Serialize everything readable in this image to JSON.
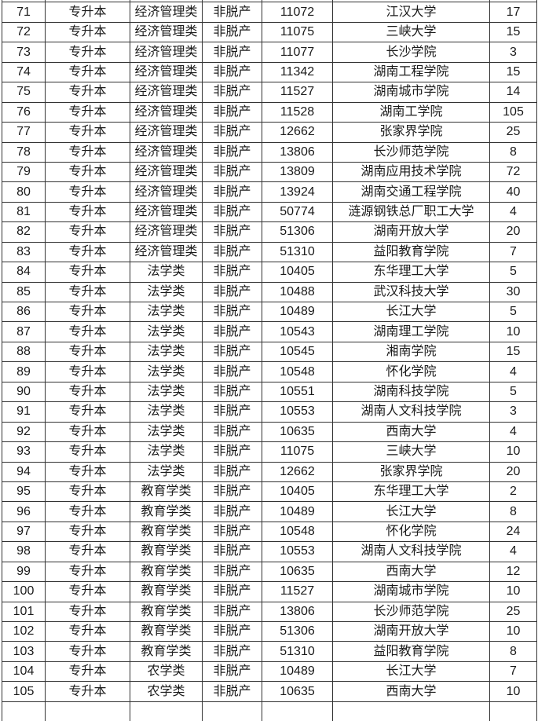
{
  "table": {
    "columns": [
      "no",
      "level",
      "category",
      "mode",
      "code",
      "school",
      "count"
    ],
    "rows": [
      {
        "no": "71",
        "level": "专升本",
        "category": "经济管理类",
        "mode": "非脱产",
        "code": "11072",
        "school": "江汉大学",
        "count": "17"
      },
      {
        "no": "72",
        "level": "专升本",
        "category": "经济管理类",
        "mode": "非脱产",
        "code": "11075",
        "school": "三峡大学",
        "count": "15"
      },
      {
        "no": "73",
        "level": "专升本",
        "category": "经济管理类",
        "mode": "非脱产",
        "code": "11077",
        "school": "长沙学院",
        "count": "3"
      },
      {
        "no": "74",
        "level": "专升本",
        "category": "经济管理类",
        "mode": "非脱产",
        "code": "11342",
        "school": "湖南工程学院",
        "count": "15"
      },
      {
        "no": "75",
        "level": "专升本",
        "category": "经济管理类",
        "mode": "非脱产",
        "code": "11527",
        "school": "湖南城市学院",
        "count": "14"
      },
      {
        "no": "76",
        "level": "专升本",
        "category": "经济管理类",
        "mode": "非脱产",
        "code": "11528",
        "school": "湖南工学院",
        "count": "105"
      },
      {
        "no": "77",
        "level": "专升本",
        "category": "经济管理类",
        "mode": "非脱产",
        "code": "12662",
        "school": "张家界学院",
        "count": "25"
      },
      {
        "no": "78",
        "level": "专升本",
        "category": "经济管理类",
        "mode": "非脱产",
        "code": "13806",
        "school": "长沙师范学院",
        "count": "8"
      },
      {
        "no": "79",
        "level": "专升本",
        "category": "经济管理类",
        "mode": "非脱产",
        "code": "13809",
        "school": "湖南应用技术学院",
        "count": "72"
      },
      {
        "no": "80",
        "level": "专升本",
        "category": "经济管理类",
        "mode": "非脱产",
        "code": "13924",
        "school": "湖南交通工程学院",
        "count": "40"
      },
      {
        "no": "81",
        "level": "专升本",
        "category": "经济管理类",
        "mode": "非脱产",
        "code": "50774",
        "school": "涟源钢铁总厂职工大学",
        "count": "4"
      },
      {
        "no": "82",
        "level": "专升本",
        "category": "经济管理类",
        "mode": "非脱产",
        "code": "51306",
        "school": "湖南开放大学",
        "count": "20"
      },
      {
        "no": "83",
        "level": "专升本",
        "category": "经济管理类",
        "mode": "非脱产",
        "code": "51310",
        "school": "益阳教育学院",
        "count": "7"
      },
      {
        "no": "84",
        "level": "专升本",
        "category": "法学类",
        "mode": "非脱产",
        "code": "10405",
        "school": "东华理工大学",
        "count": "5"
      },
      {
        "no": "85",
        "level": "专升本",
        "category": "法学类",
        "mode": "非脱产",
        "code": "10488",
        "school": "武汉科技大学",
        "count": "30"
      },
      {
        "no": "86",
        "level": "专升本",
        "category": "法学类",
        "mode": "非脱产",
        "code": "10489",
        "school": "长江大学",
        "count": "5"
      },
      {
        "no": "87",
        "level": "专升本",
        "category": "法学类",
        "mode": "非脱产",
        "code": "10543",
        "school": "湖南理工学院",
        "count": "10"
      },
      {
        "no": "88",
        "level": "专升本",
        "category": "法学类",
        "mode": "非脱产",
        "code": "10545",
        "school": "湘南学院",
        "count": "15"
      },
      {
        "no": "89",
        "level": "专升本",
        "category": "法学类",
        "mode": "非脱产",
        "code": "10548",
        "school": "怀化学院",
        "count": "4"
      },
      {
        "no": "90",
        "level": "专升本",
        "category": "法学类",
        "mode": "非脱产",
        "code": "10551",
        "school": "湖南科技学院",
        "count": "5"
      },
      {
        "no": "91",
        "level": "专升本",
        "category": "法学类",
        "mode": "非脱产",
        "code": "10553",
        "school": "湖南人文科技学院",
        "count": "3"
      },
      {
        "no": "92",
        "level": "专升本",
        "category": "法学类",
        "mode": "非脱产",
        "code": "10635",
        "school": "西南大学",
        "count": "4"
      },
      {
        "no": "93",
        "level": "专升本",
        "category": "法学类",
        "mode": "非脱产",
        "code": "11075",
        "school": "三峡大学",
        "count": "10"
      },
      {
        "no": "94",
        "level": "专升本",
        "category": "法学类",
        "mode": "非脱产",
        "code": "12662",
        "school": "张家界学院",
        "count": "20"
      },
      {
        "no": "95",
        "level": "专升本",
        "category": "教育学类",
        "mode": "非脱产",
        "code": "10405",
        "school": "东华理工大学",
        "count": "2"
      },
      {
        "no": "96",
        "level": "专升本",
        "category": "教育学类",
        "mode": "非脱产",
        "code": "10489",
        "school": "长江大学",
        "count": "8"
      },
      {
        "no": "97",
        "level": "专升本",
        "category": "教育学类",
        "mode": "非脱产",
        "code": "10548",
        "school": "怀化学院",
        "count": "24"
      },
      {
        "no": "98",
        "level": "专升本",
        "category": "教育学类",
        "mode": "非脱产",
        "code": "10553",
        "school": "湖南人文科技学院",
        "count": "4"
      },
      {
        "no": "99",
        "level": "专升本",
        "category": "教育学类",
        "mode": "非脱产",
        "code": "10635",
        "school": "西南大学",
        "count": "12"
      },
      {
        "no": "100",
        "level": "专升本",
        "category": "教育学类",
        "mode": "非脱产",
        "code": "11527",
        "school": "湖南城市学院",
        "count": "10"
      },
      {
        "no": "101",
        "level": "专升本",
        "category": "教育学类",
        "mode": "非脱产",
        "code": "13806",
        "school": "长沙师范学院",
        "count": "25"
      },
      {
        "no": "102",
        "level": "专升本",
        "category": "教育学类",
        "mode": "非脱产",
        "code": "51306",
        "school": "湖南开放大学",
        "count": "10"
      },
      {
        "no": "103",
        "level": "专升本",
        "category": "教育学类",
        "mode": "非脱产",
        "code": "51310",
        "school": "益阳教育学院",
        "count": "8"
      },
      {
        "no": "104",
        "level": "专升本",
        "category": "农学类",
        "mode": "非脱产",
        "code": "10489",
        "school": "长江大学",
        "count": "7"
      },
      {
        "no": "105",
        "level": "专升本",
        "category": "农学类",
        "mode": "非脱产",
        "code": "10635",
        "school": "西南大学",
        "count": "10"
      }
    ]
  }
}
